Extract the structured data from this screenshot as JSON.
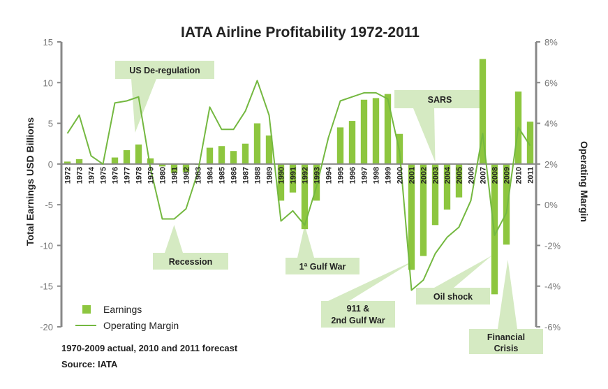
{
  "chart_data": {
    "type": "bar",
    "title": "IATA Airline Profitability 1972-2011",
    "ylabel": "Total Earnings USD Billions",
    "y2label": "Operating Margin",
    "ylim": [
      -20,
      15
    ],
    "y2lim": [
      -6,
      8
    ],
    "yticks": [
      "15",
      "10",
      "5",
      "0",
      "-5",
      "-10",
      "-15",
      "-20"
    ],
    "y2ticks": [
      "8%",
      "6%",
      "4%",
      "2%",
      "0%",
      "-2%",
      "-4%",
      "-6%"
    ],
    "grid": false,
    "legend_position": "bottom-left",
    "categories": [
      "1972",
      "1973",
      "1974",
      "1975",
      "1976",
      "1977",
      "1978",
      "1979",
      "1980",
      "1981",
      "1982",
      "1983",
      "1984",
      "1985",
      "1986",
      "1987",
      "1988",
      "1989",
      "1990",
      "1991",
      "1992",
      "1993",
      "1994",
      "1995",
      "1996",
      "1997",
      "1998",
      "1999",
      "2000",
      "2001",
      "2002",
      "2003",
      "2004",
      "2005",
      "2006",
      "2007",
      "2008",
      "2009",
      "2010",
      "2011"
    ],
    "series": [
      {
        "name": "Earnings",
        "kind": "bar",
        "axis": "left",
        "values": [
          0.3,
          0.6,
          0,
          0,
          0.8,
          1.7,
          2.4,
          0.7,
          -0.3,
          -1.1,
          -1.0,
          -0.1,
          2.0,
          2.2,
          1.6,
          2.5,
          5.0,
          3.5,
          -4.5,
          -3.5,
          -8.0,
          -4.5,
          0,
          4.5,
          5.3,
          7.9,
          8.1,
          8.6,
          3.7,
          -13.0,
          -11.3,
          -7.5,
          -5.6,
          -4.1,
          -0.1,
          12.9,
          -16.0,
          -9.9,
          8.9,
          5.2
        ]
      },
      {
        "name": "Operating Margin",
        "kind": "line",
        "axis": "right",
        "values": [
          3.5,
          4.4,
          2.4,
          2.0,
          5.0,
          5.1,
          5.3,
          1.8,
          -0.7,
          -0.7,
          -0.2,
          1.6,
          4.8,
          3.7,
          3.7,
          4.6,
          6.1,
          4.4,
          -0.8,
          -0.3,
          -1.0,
          0.9,
          3.3,
          5.1,
          5.3,
          5.5,
          5.5,
          5.2,
          2.6,
          -4.2,
          -3.7,
          -2.4,
          -1.6,
          -1.1,
          0.2,
          3.5,
          -1.5,
          -0.4,
          3.8,
          2.9
        ]
      }
    ],
    "annotations": [
      {
        "label": "US De-regulation",
        "year": "1978"
      },
      {
        "label": "Recession",
        "year": "1981"
      },
      {
        "label": "1ª Gulf War",
        "year": "1992"
      },
      {
        "label": "SARS",
        "year": "2003"
      },
      {
        "label": "911 &",
        "label2": "2nd Gulf War",
        "year": "2001"
      },
      {
        "label": "Oil shock",
        "year": "2008"
      },
      {
        "label": "Financial",
        "label2": "Crisis",
        "year": "2009"
      }
    ],
    "notes": [
      "1970-2009 actual, 2010 and 2011 forecast",
      "Source: IATA"
    ]
  },
  "colors": {
    "bar": "#8dc63f",
    "line": "#74b840",
    "callout": "#d5eac2",
    "axis": "#888888"
  }
}
